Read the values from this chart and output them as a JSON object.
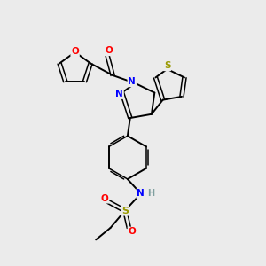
{
  "bg_color": "#ebebeb",
  "bond_color": "#000000",
  "atom_colors": {
    "O": "#ff0000",
    "N": "#0000ff",
    "S_thiophene": "#999900",
    "S_sulfonamide": "#999900",
    "H": "#7f9f9f",
    "C": "#000000"
  },
  "figsize": [
    3.0,
    3.0
  ],
  "dpi": 100
}
